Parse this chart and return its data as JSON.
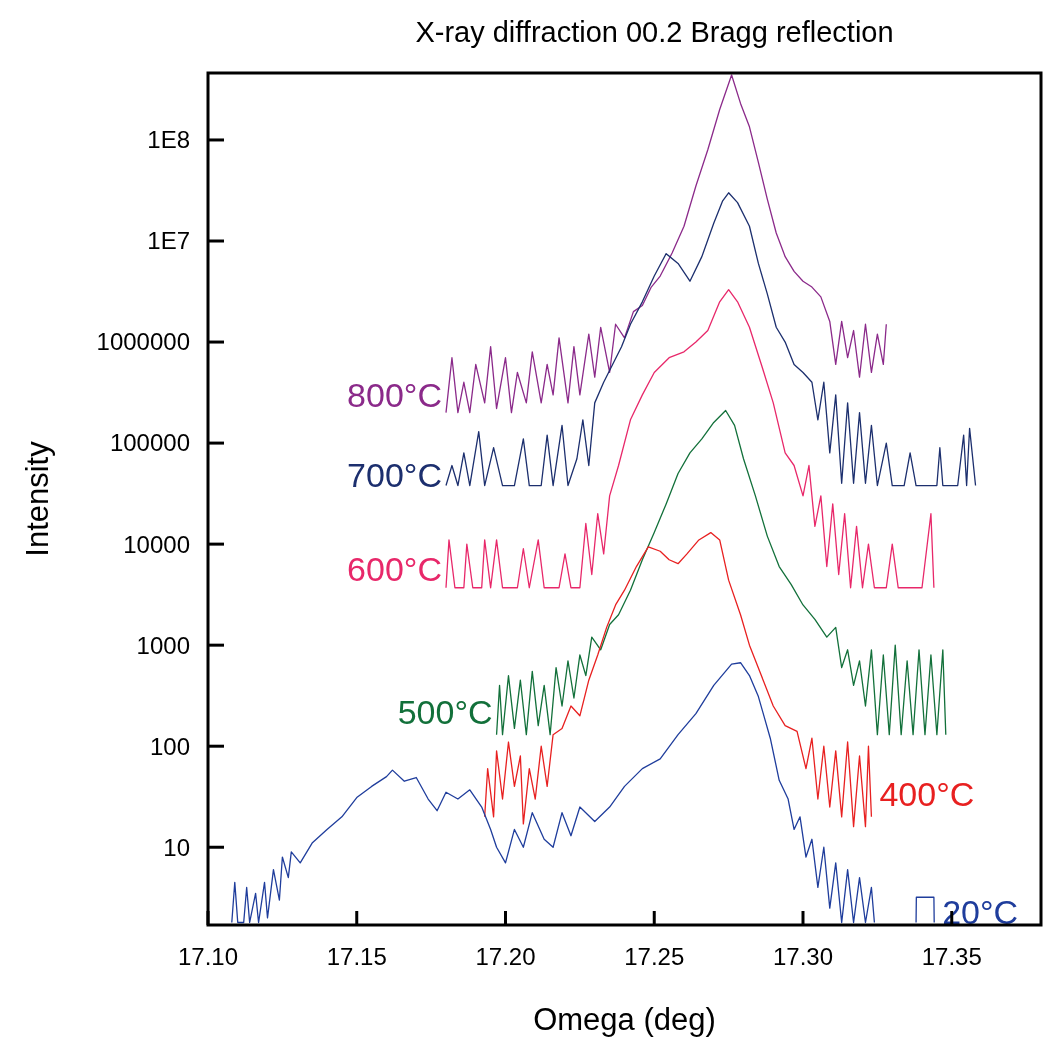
{
  "chart_data": {
    "type": "line",
    "title": "X-ray diffraction 00.2 Bragg reflection",
    "xlabel": "Omega (deg)",
    "ylabel": "Intensity",
    "log": "y",
    "marker": "none",
    "line_style": "solid",
    "xlim": [
      17.1,
      17.38
    ],
    "xticks": [
      {
        "value": 17.1,
        "label": "17.10"
      },
      {
        "value": 17.15,
        "label": "17.15"
      },
      {
        "value": 17.2,
        "label": "17.20"
      },
      {
        "value": 17.25,
        "label": "17.25"
      },
      {
        "value": 17.3,
        "label": "17.30"
      },
      {
        "value": 17.35,
        "label": "17.35"
      }
    ],
    "ylim": [
      1.7,
      460000000
    ],
    "yticks": [
      10,
      100,
      1000,
      10000,
      100000,
      1000000,
      {
        "value": 10000000,
        "label": "1E7"
      },
      {
        "value": 100000000,
        "label": "1E8"
      }
    ],
    "series": [
      {
        "name": "800°C",
        "color": "#8b2a8a",
        "x": [
          17.18,
          17.182,
          17.184,
          17.186,
          17.188,
          17.19,
          17.193,
          17.195,
          17.197,
          17.2,
          17.202,
          17.204,
          17.207,
          17.209,
          17.212,
          17.214,
          17.216,
          17.218,
          17.221,
          17.223,
          17.225,
          17.228,
          17.23,
          17.232,
          17.235,
          17.237,
          17.24,
          17.243,
          17.246,
          17.249,
          17.252,
          17.256,
          17.26,
          17.264,
          17.268,
          17.272,
          17.276,
          17.279,
          17.282,
          17.285,
          17.288,
          17.291,
          17.294,
          17.297,
          17.3,
          17.303,
          17.306,
          17.309,
          17.311,
          17.313,
          17.315,
          17.317,
          17.319,
          17.321,
          17.323,
          17.325,
          17.327,
          17.328
        ],
        "values": [
          200000,
          700000,
          200000,
          400000,
          200000,
          600000,
          250000,
          900000,
          220000,
          700000,
          200000,
          500000,
          250000,
          800000,
          250000,
          600000,
          300000,
          1100000,
          250000,
          900000,
          300000,
          1200000,
          450000,
          1400000,
          500000,
          1500000,
          1100000,
          2000000,
          2300000,
          3500000,
          4500000,
          7600000,
          14000000,
          35000000,
          80000000,
          200000000,
          440000000,
          230000000,
          135000000,
          60000000,
          26000000,
          12000000,
          7000000,
          5000000,
          4000000,
          3500000,
          2800000,
          1600000,
          600000,
          1600000,
          700000,
          1300000,
          450000,
          1500000,
          500000,
          1200000,
          600000,
          1500000
        ]
      },
      {
        "name": "700°C",
        "color": "#1c2f6e",
        "x": [
          17.18,
          17.182,
          17.184,
          17.186,
          17.188,
          17.191,
          17.193,
          17.196,
          17.199,
          17.203,
          17.206,
          17.208,
          17.212,
          17.214,
          17.216,
          17.219,
          17.221,
          17.224,
          17.226,
          17.228,
          17.23,
          17.233,
          17.236,
          17.239,
          17.242,
          17.246,
          17.25,
          17.254,
          17.258,
          17.262,
          17.266,
          17.27,
          17.273,
          17.275,
          17.278,
          17.282,
          17.285,
          17.288,
          17.291,
          17.294,
          17.297,
          17.3,
          17.303,
          17.305,
          17.307,
          17.309,
          17.311,
          17.313,
          17.315,
          17.317,
          17.319,
          17.321,
          17.323,
          17.325,
          17.328,
          17.33,
          17.334,
          17.336,
          17.338,
          17.345,
          17.346,
          17.347,
          17.352,
          17.354,
          17.355,
          17.356,
          17.358
        ],
        "values": [
          38000,
          60000,
          38000,
          80000,
          38000,
          130000,
          38000,
          90000,
          38000,
          38000,
          110000,
          38000,
          38000,
          120000,
          38000,
          150000,
          38000,
          70000,
          170000,
          60000,
          250000,
          400000,
          600000,
          900000,
          1500000,
          2500000,
          4500000,
          7500000,
          6000000,
          4000000,
          7000000,
          15000000,
          25000000,
          30000000,
          24000000,
          14000000,
          6000000,
          3000000,
          1400000,
          1000000,
          600000,
          500000,
          400000,
          170000,
          400000,
          80000,
          300000,
          40000,
          250000,
          40000,
          200000,
          40000,
          150000,
          38000,
          100000,
          38000,
          38000,
          80000,
          38000,
          38000,
          90000,
          38000,
          38000,
          120000,
          38000,
          140000,
          38000
        ]
      },
      {
        "name": "600°C",
        "color": "#e8286a",
        "x": [
          17.18,
          17.181,
          17.183,
          17.186,
          17.187,
          17.189,
          17.192,
          17.193,
          17.195,
          17.197,
          17.199,
          17.204,
          17.206,
          17.208,
          17.211,
          17.213,
          17.218,
          17.22,
          17.222,
          17.225,
          17.227,
          17.229,
          17.231,
          17.233,
          17.235,
          17.238,
          17.242,
          17.246,
          17.25,
          17.255,
          17.26,
          17.264,
          17.268,
          17.272,
          17.275,
          17.278,
          17.282,
          17.286,
          17.29,
          17.294,
          17.297,
          17.3,
          17.302,
          17.304,
          17.306,
          17.308,
          17.31,
          17.312,
          17.314,
          17.316,
          17.318,
          17.32,
          17.322,
          17.324,
          17.328,
          17.33,
          17.332,
          17.34,
          17.343,
          17.344
        ],
        "values": [
          3700,
          11000,
          3700,
          3700,
          10000,
          3700,
          3700,
          11000,
          3700,
          11000,
          3700,
          3700,
          9000,
          3700,
          11000,
          3700,
          3700,
          8000,
          3700,
          3700,
          16000,
          5000,
          20000,
          8000,
          30000,
          60000,
          170000,
          300000,
          500000,
          700000,
          800000,
          1000000,
          1300000,
          2500000,
          3300000,
          2500000,
          1400000,
          600000,
          250000,
          80000,
          60000,
          30000,
          60000,
          15000,
          30000,
          6000,
          25000,
          5000,
          20000,
          3700,
          15000,
          3700,
          10000,
          3700,
          3700,
          10000,
          3700,
          3700,
          20000,
          3700
        ]
      },
      {
        "name": "500°C",
        "color": "#12703a",
        "x": [
          17.197,
          17.198,
          17.199,
          17.201,
          17.203,
          17.205,
          17.207,
          17.209,
          17.211,
          17.213,
          17.215,
          17.217,
          17.219,
          17.221,
          17.223,
          17.225,
          17.227,
          17.229,
          17.232,
          17.235,
          17.238,
          17.242,
          17.246,
          17.25,
          17.254,
          17.258,
          17.262,
          17.266,
          17.27,
          17.274,
          17.277,
          17.28,
          17.284,
          17.288,
          17.292,
          17.296,
          17.3,
          17.304,
          17.308,
          17.311,
          17.313,
          17.315,
          17.317,
          17.319,
          17.321,
          17.323,
          17.325,
          17.327,
          17.329,
          17.331,
          17.333,
          17.335,
          17.337,
          17.339,
          17.341,
          17.343,
          17.345,
          17.347,
          17.348
        ],
        "values": [
          130,
          400,
          130,
          500,
          150,
          450,
          130,
          550,
          160,
          400,
          130,
          600,
          250,
          700,
          300,
          800,
          500,
          1200,
          900,
          1600,
          2000,
          3500,
          7000,
          13000,
          25000,
          50000,
          80000,
          110000,
          160000,
          210000,
          150000,
          70000,
          30000,
          12000,
          6000,
          4000,
          2500,
          1800,
          1200,
          1500,
          600,
          900,
          400,
          700,
          250,
          900,
          130,
          800,
          130,
          1000,
          130,
          700,
          130,
          900,
          130,
          800,
          130,
          900,
          130
        ]
      },
      {
        "name": "400°C",
        "color": "#e82020",
        "x": [
          17.193,
          17.194,
          17.196,
          17.197,
          17.199,
          17.201,
          17.203,
          17.205,
          17.206,
          17.208,
          17.21,
          17.212,
          17.214,
          17.216,
          17.219,
          17.222,
          17.225,
          17.228,
          17.231,
          17.234,
          17.237,
          17.24,
          17.244,
          17.248,
          17.252,
          17.255,
          17.258,
          17.261,
          17.265,
          17.269,
          17.272,
          17.275,
          17.279,
          17.282,
          17.286,
          17.29,
          17.294,
          17.298,
          17.301,
          17.303,
          17.305,
          17.307,
          17.309,
          17.311,
          17.313,
          17.315,
          17.317,
          17.319,
          17.321,
          17.322,
          17.323
        ],
        "values": [
          20,
          60,
          20,
          90,
          30,
          110,
          40,
          80,
          17,
          60,
          30,
          100,
          40,
          130,
          150,
          250,
          200,
          450,
          800,
          1500,
          2500,
          3500,
          6000,
          9400,
          8500,
          7000,
          6400,
          8000,
          11000,
          13000,
          11000,
          4400,
          2000,
          1000,
          500,
          250,
          160,
          140,
          60,
          120,
          30,
          100,
          25,
          90,
          20,
          110,
          16,
          80,
          16,
          100,
          20
        ]
      },
      {
        "name": "20°C",
        "color": "#1f3d9c",
        "x": [
          17.108,
          17.109,
          17.11,
          17.112,
          17.113,
          17.114,
          17.116,
          17.117,
          17.119,
          17.12,
          17.122,
          17.124,
          17.125,
          17.127,
          17.128,
          17.131,
          17.135,
          17.14,
          17.145,
          17.15,
          17.155,
          17.16,
          17.162,
          17.166,
          17.17,
          17.174,
          17.177,
          17.18,
          17.184,
          17.188,
          17.192,
          17.195,
          17.197,
          17.2,
          17.203,
          17.206,
          17.209,
          17.213,
          17.216,
          17.219,
          17.222,
          17.225,
          17.23,
          17.235,
          17.24,
          17.246,
          17.252,
          17.258,
          17.264,
          17.27,
          17.276,
          17.279,
          17.282,
          17.285,
          17.289,
          17.292,
          17.295,
          17.297,
          17.299,
          17.301,
          17.303,
          17.305,
          17.307,
          17.309,
          17.311,
          17.313,
          17.315,
          17.317,
          17.319,
          17.321,
          17.323,
          17.324,
          17.33,
          17.338,
          17.3381,
          17.344,
          17.3441
        ],
        "values": [
          1.8,
          4.5,
          1.8,
          1.8,
          4,
          1.8,
          3.5,
          1.8,
          4.5,
          2,
          6,
          3,
          8,
          5,
          9,
          7,
          11,
          15,
          20,
          31,
          40,
          50,
          58,
          45,
          49,
          30,
          23,
          35,
          30,
          37,
          25,
          15,
          10,
          7,
          15,
          10,
          22,
          12,
          10,
          22,
          13,
          25,
          18,
          25,
          40,
          60,
          75,
          130,
          210,
          400,
          650,
          670,
          500,
          310,
          120,
          46,
          30,
          15,
          20,
          8,
          12,
          4,
          10,
          2.5,
          7,
          1.8,
          6,
          1.8,
          5,
          1.8,
          4,
          1.8,
          null,
          1.8,
          3.2,
          3.2,
          1.8
        ]
      }
    ]
  }
}
